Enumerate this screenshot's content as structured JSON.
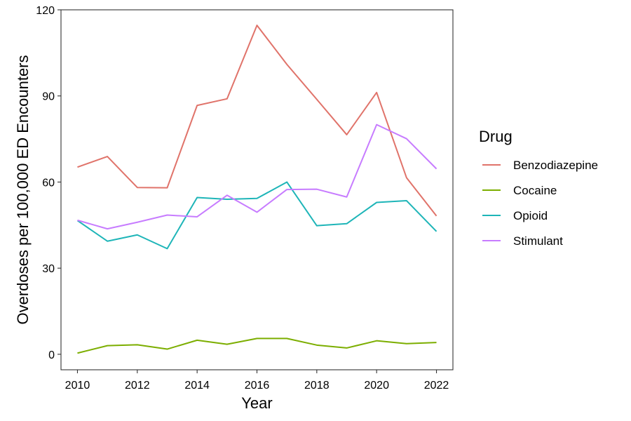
{
  "chart_data": {
    "type": "line",
    "xlabel": "Year",
    "ylabel": "Overdoses per 100,000 ED Encounters",
    "xlim": [
      2009.45,
      2022.55
    ],
    "ylim": [
      -5.4,
      120
    ],
    "xticks": [
      2010,
      2012,
      2014,
      2016,
      2018,
      2020,
      2022
    ],
    "yticks": [
      0,
      30,
      60,
      90,
      120
    ],
    "x": [
      2010,
      2011,
      2012,
      2013,
      2014,
      2015,
      2016,
      2017,
      2018,
      2019,
      2020,
      2021,
      2022
    ],
    "legend": {
      "title": "Drug",
      "position": "right"
    },
    "grid": false,
    "series": [
      {
        "name": "Benzodiazepine",
        "color": "#E0736A",
        "values": [
          65.2,
          68.9,
          58.1,
          58.0,
          86.7,
          89.0,
          114.6,
          101.0,
          88.8,
          76.5,
          91.2,
          61.5,
          48.2
        ]
      },
      {
        "name": "Cocaine",
        "color": "#7CAE00",
        "values": [
          0.4,
          3.0,
          3.3,
          1.8,
          4.9,
          3.5,
          5.5,
          5.5,
          3.2,
          2.2,
          4.7,
          3.7,
          4.1
        ]
      },
      {
        "name": "Opioid",
        "color": "#1EB5B8",
        "values": [
          46.6,
          39.4,
          41.6,
          36.8,
          54.6,
          54.0,
          54.3,
          60.0,
          44.8,
          45.5,
          52.9,
          53.5,
          42.8
        ]
      },
      {
        "name": "Stimulant",
        "color": "#C77CFF",
        "values": [
          46.7,
          43.7,
          46.0,
          48.5,
          47.9,
          55.4,
          49.5,
          57.4,
          57.5,
          54.8,
          80.0,
          75.1,
          64.6
        ]
      }
    ]
  }
}
